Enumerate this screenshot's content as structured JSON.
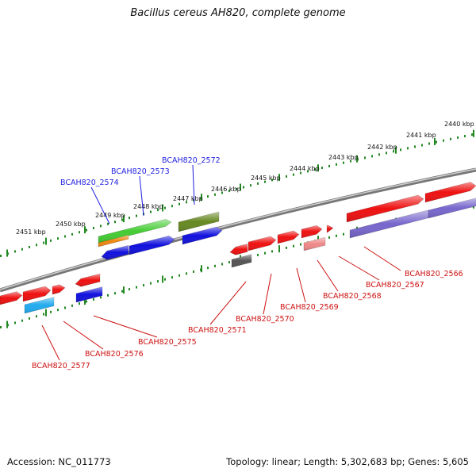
{
  "title": "Bacillus cereus AH820, complete genome",
  "footer": {
    "accession": "Accession: NC_011773",
    "summary": "Topology: linear; Length: 5,302,683 bp; Genes: 5,605"
  },
  "scale_labels": [
    "2440 kbp",
    "2441 kbp",
    "2442 kbp",
    "2443 kbp",
    "2444 kbp",
    "2445 kbp",
    "2446 kbp",
    "2447 kbp",
    "2448 kbp",
    "2449 kbp",
    "2450 kbp",
    "2451 kbp"
  ],
  "top_genes": [
    "BCAH820_2572",
    "BCAH820_2573",
    "BCAH820_2574"
  ],
  "bottom_genes": [
    "BCAH820_2566",
    "BCAH820_2567",
    "BCAH820_2568",
    "BCAH820_2569",
    "BCAH820_2570",
    "BCAH820_2571",
    "BCAH820_2575",
    "BCAH820_2576",
    "BCAH820_2577"
  ],
  "colors": {
    "red": "#ee1111",
    "blue": "#1111dd",
    "green": "#44cc33",
    "olive": "#668822",
    "orange": "#ee8811",
    "purple": "#7766cc",
    "pink": "#ee8888",
    "gray": "#555555",
    "cyan": "#22aaee",
    "tick": "#228822"
  }
}
